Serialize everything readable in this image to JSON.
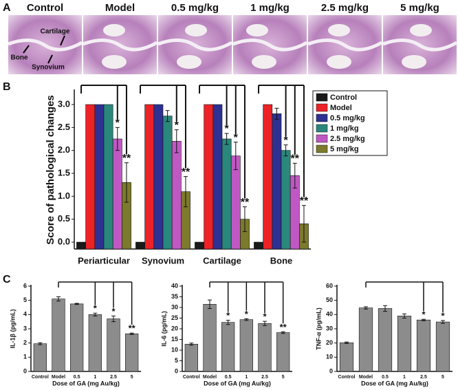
{
  "panels": {
    "a": "A",
    "b": "B",
    "c": "C"
  },
  "histology": {
    "labels": [
      "Control",
      "Model",
      "0.5 mg/kg",
      "1 mg/kg",
      "2.5 mg/kg",
      "5 mg/kg"
    ],
    "annotations": [
      "Cartilage",
      "Bone",
      "Synovium"
    ]
  },
  "chart_data": [
    {
      "type": "bar",
      "ylabel": "Score of pathological changes",
      "categories": [
        "Periarticular",
        "Synovium",
        "Cartilage",
        "Bone"
      ],
      "ylim": [
        -0.15,
        3.3
      ],
      "yticks": [
        {
          "value": 0,
          "label": "0.0"
        },
        {
          "value": 0.5,
          "label": "0.5"
        },
        {
          "value": 1,
          "label": "1.0"
        },
        {
          "value": 1.5,
          "label": "1.5"
        },
        {
          "value": 2,
          "label": "2.0"
        },
        {
          "value": 2.5,
          "label": "2.5"
        },
        {
          "value": 3,
          "label": "3.0"
        }
      ],
      "legend": "upper right",
      "series": [
        {
          "name": "Control",
          "color": "#1a1a1a",
          "values": [
            0,
            0,
            0,
            0
          ],
          "errors": [
            0,
            0,
            0,
            0
          ],
          "annotations": [
            null,
            null,
            null,
            null
          ]
        },
        {
          "name": "Model",
          "color": "#ec2227",
          "values": [
            3,
            3,
            3,
            3
          ],
          "errors": [
            0,
            0,
            0,
            0
          ],
          "annotations": [
            null,
            null,
            null,
            null
          ]
        },
        {
          "name": "0.5 mg/kg",
          "color": "#2e3192",
          "values": [
            3,
            3,
            3,
            2.8
          ],
          "errors": [
            0,
            0,
            0,
            0.12
          ],
          "annotations": [
            null,
            null,
            null,
            null
          ]
        },
        {
          "name": "1 mg/kg",
          "color": "#2a877c",
          "values": [
            3,
            2.75,
            2.25,
            2
          ],
          "errors": [
            0,
            0.12,
            0.12,
            0.12
          ],
          "annotations": [
            null,
            null,
            "*",
            "*"
          ]
        },
        {
          "name": "2.5 mg/kg",
          "color": "#c058c3",
          "values": [
            2.25,
            2.2,
            1.88,
            1.45
          ],
          "errors": [
            0.25,
            0.25,
            0.3,
            0.27
          ],
          "annotations": [
            "*",
            "*",
            "*",
            "**"
          ]
        },
        {
          "name": "5 mg/kg",
          "color": "#7c7a2c",
          "values": [
            1.3,
            1.1,
            0.5,
            0.4
          ],
          "errors": [
            0.43,
            0.33,
            0.27,
            0.4
          ],
          "annotations": [
            "**",
            "**",
            "**",
            "**"
          ]
        }
      ]
    },
    {
      "type": "bar",
      "ylabel": "IL-1β (pg/mL)",
      "xlabel": "Dose of GA (mg Au/kg)",
      "color": "#8c8c8c",
      "categories": [
        "Control",
        "Model",
        "0.5",
        "1",
        "2.5",
        "5"
      ],
      "values": [
        1.95,
        5.1,
        4.75,
        4.0,
        3.7,
        2.65
      ],
      "errors": [
        0.07,
        0.15,
        0.04,
        0.1,
        0.2,
        0.05
      ],
      "annotations": [
        null,
        null,
        null,
        "*",
        "*",
        "**"
      ],
      "ylim": [
        0,
        6
      ],
      "yticks": [
        0,
        1,
        2,
        3,
        4,
        5,
        6
      ]
    },
    {
      "type": "bar",
      "ylabel": "IL-6 (pg/mL)",
      "xlabel": "Dose of GA (mg Au/kg)",
      "color": "#8c8c8c",
      "categories": [
        "Control",
        "Model",
        "0.5",
        "1",
        "2.5",
        "5"
      ],
      "values": [
        12.8,
        31.5,
        23,
        24.3,
        22.5,
        18.2
      ],
      "errors": [
        0.5,
        2,
        1,
        0.4,
        1,
        0.4
      ],
      "annotations": [
        null,
        null,
        "*",
        "*",
        "*",
        "**"
      ],
      "ylim": [
        0,
        40
      ],
      "yticks": [
        0,
        5,
        10,
        15,
        20,
        25,
        30,
        35,
        40
      ]
    },
    {
      "type": "bar",
      "ylabel": "TNF-α (pg/mL)",
      "xlabel": "Dose of GA (mg Au/kg)",
      "color": "#8c8c8c",
      "categories": [
        "Control",
        "Model",
        "0.5",
        "1",
        "2.5",
        "5"
      ],
      "values": [
        20.2,
        44.7,
        44.3,
        39,
        36.2,
        34.8
      ],
      "errors": [
        0.5,
        0.8,
        2,
        1.5,
        0.5,
        1
      ],
      "annotations": [
        null,
        null,
        null,
        null,
        "*",
        "*"
      ],
      "ylim": [
        0,
        60
      ],
      "yticks": [
        0,
        10,
        20,
        30,
        40,
        50,
        60
      ]
    }
  ]
}
